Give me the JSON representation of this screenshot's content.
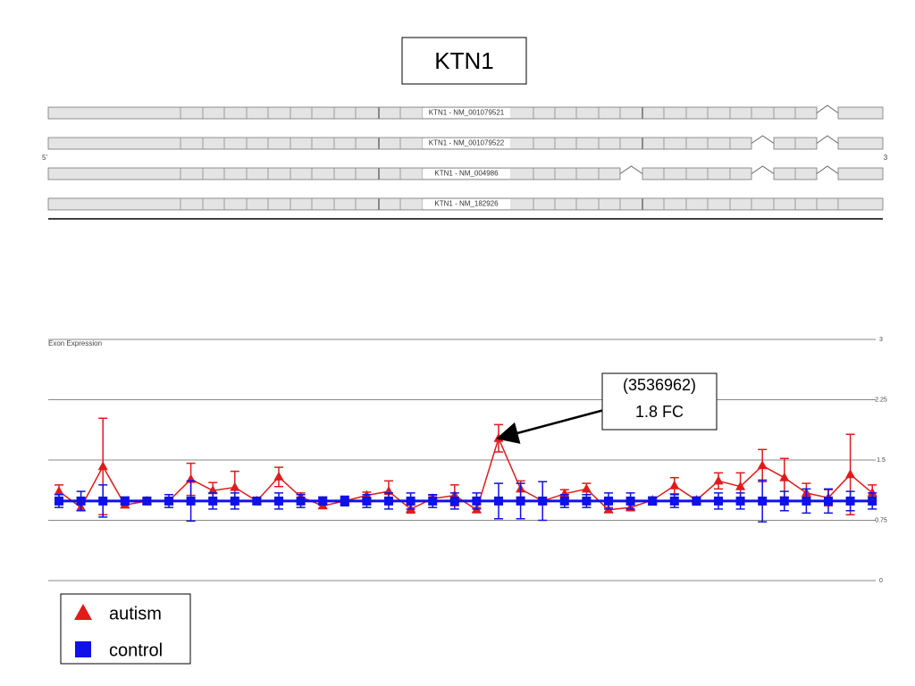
{
  "gene_title": "KTN1",
  "transcripts": [
    "KTN1 - NM_001079521",
    "KTN1 - NM_001079522",
    "KTN1 - NM_004986",
    "KTN1 - NM_182926"
  ],
  "strand_labels": [
    "5'",
    "3"
  ],
  "chart_data": {
    "type": "line",
    "title": "Exon Expression",
    "ylim": [
      0,
      3
    ],
    "yticks": [
      0,
      0.75,
      1.5,
      2.25,
      3
    ],
    "grid": true,
    "legend": "bottom-left",
    "annotation": [
      "(3536962)",
      "1.8 FC"
    ],
    "series": [
      {
        "name": "autism",
        "color": "#e01b1b",
        "marker": "triangle",
        "values": [
          1.11,
          0.91,
          1.42,
          0.94,
          0.99,
          0.99,
          1.26,
          1.12,
          1.16,
          0.99,
          1.29,
          1.04,
          0.93,
          0.99,
          1.06,
          1.11,
          0.89,
          1.02,
          1.06,
          0.88,
          1.77,
          1.14,
          0.99,
          1.08,
          1.14,
          0.88,
          0.91,
          1.0,
          1.18,
          1.0,
          1.24,
          1.17,
          1.43,
          1.28,
          1.09,
          1.03,
          1.32,
          1.09
        ],
        "errors": [
          0.08,
          0.04,
          0.6,
          0.03,
          0.02,
          0.02,
          0.2,
          0.1,
          0.2,
          0.02,
          0.12,
          0.05,
          0.03,
          0.03,
          0.04,
          0.13,
          0.05,
          0.04,
          0.13,
          0.03,
          0.17,
          0.1,
          0.03,
          0.05,
          0.07,
          0.03,
          0.04,
          0.03,
          0.1,
          0.03,
          0.1,
          0.17,
          0.2,
          0.24,
          0.12,
          0.1,
          0.5,
          0.1
        ]
      },
      {
        "name": "control",
        "color": "#1010e8",
        "marker": "square",
        "values": [
          0.99,
          0.99,
          0.99,
          0.99,
          0.99,
          0.99,
          0.99,
          0.99,
          0.99,
          0.99,
          0.99,
          0.99,
          0.99,
          0.99,
          0.99,
          0.99,
          0.99,
          0.99,
          0.99,
          0.99,
          0.99,
          0.99,
          0.99,
          0.99,
          0.99,
          0.99,
          0.99,
          0.99,
          0.99,
          0.99,
          0.99,
          0.99,
          0.99,
          0.99,
          0.99,
          0.99,
          0.99,
          0.99
        ],
        "errors": [
          0.08,
          0.12,
          0.2,
          0.05,
          0.03,
          0.08,
          0.25,
          0.1,
          0.1,
          0.03,
          0.1,
          0.08,
          0.05,
          0.06,
          0.08,
          0.1,
          0.1,
          0.08,
          0.1,
          0.1,
          0.22,
          0.22,
          0.24,
          0.08,
          0.08,
          0.1,
          0.1,
          0.05,
          0.08,
          0.05,
          0.1,
          0.1,
          0.26,
          0.12,
          0.15,
          0.15,
          0.12,
          0.1
        ]
      }
    ]
  }
}
